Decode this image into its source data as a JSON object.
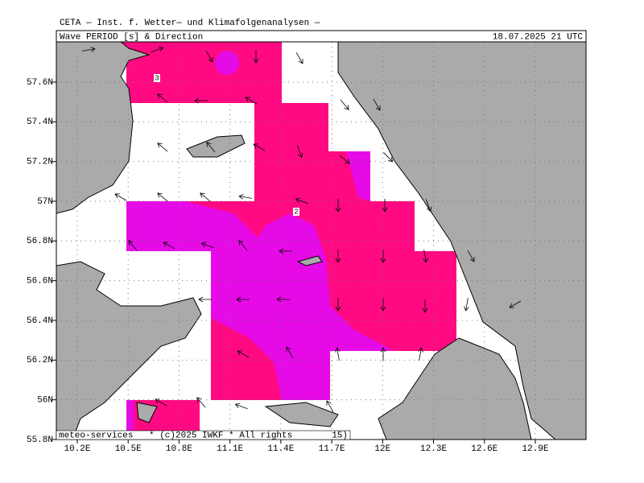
{
  "header": {
    "title": "CETA — Inst. f. Wetter— und Klimafolgenanalysen —",
    "product": "Wave PERIOD [s] & Direction",
    "valid": "18.07.2025 21 UTC"
  },
  "latitudes": [
    {
      "value": 57.6,
      "label": "57.6N"
    },
    {
      "value": 57.4,
      "label": "57.4N"
    },
    {
      "value": 57.2,
      "label": "57.2N"
    },
    {
      "value": 57,
      "label": "57N"
    },
    {
      "value": 56.8,
      "label": "56.8N"
    },
    {
      "value": 56.6,
      "label": "56.6N"
    },
    {
      "value": 56.4,
      "label": "56.4N"
    },
    {
      "value": 56.2,
      "label": "56.2N"
    },
    {
      "value": 56,
      "label": "56N"
    },
    {
      "value": 55.8,
      "label": "55.8N"
    }
  ],
  "longitudes": [
    {
      "value": 10.2,
      "label": "10.2E"
    },
    {
      "value": 10.5,
      "label": "10.5E"
    },
    {
      "value": 10.8,
      "label": "10.8E"
    },
    {
      "value": 11.1,
      "label": "11.1E"
    },
    {
      "value": 11.4,
      "label": "11.4E"
    },
    {
      "value": 11.7,
      "label": "11.7E"
    },
    {
      "value": 12,
      "label": "12E"
    },
    {
      "value": 12.3,
      "label": "12.3E"
    },
    {
      "value": 12.6,
      "label": "12.6E"
    },
    {
      "value": 12.9,
      "label": "12.9E"
    }
  ],
  "contour_labels": [
    "3",
    "2"
  ],
  "footer": {
    "source": "meteo-services",
    "copyright": "* (c)2025 IWKF * All rights",
    "suffix": "15)"
  }
}
